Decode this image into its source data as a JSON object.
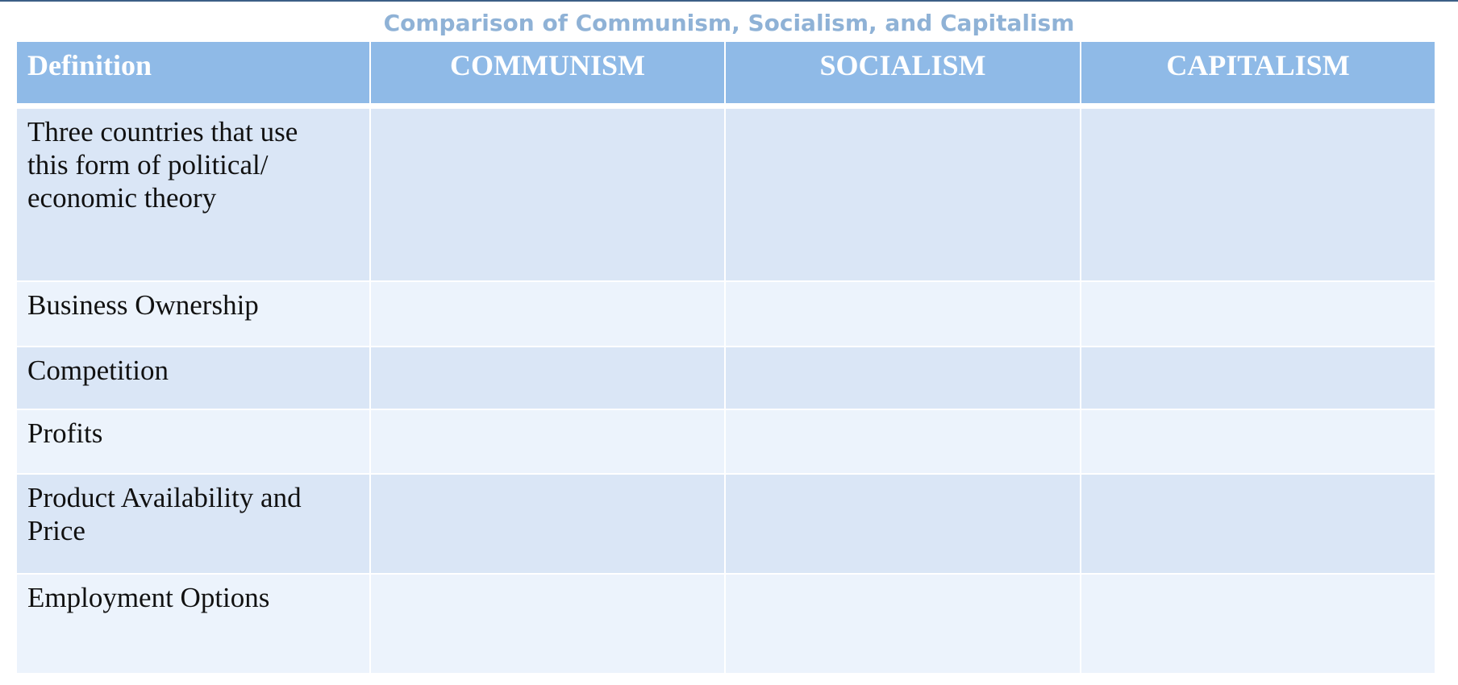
{
  "title": "Comparison of Communism, Socialism, and Capitalism",
  "table": {
    "header": [
      "Definition",
      "COMMUNISM",
      "SOCIALISM",
      "CAPITALISM"
    ],
    "rows": [
      "Three countries that use this form of political/ economic theory",
      "Business Ownership",
      "Competition",
      "Profits",
      "Product Availability and Price",
      "Employment Options"
    ]
  }
}
